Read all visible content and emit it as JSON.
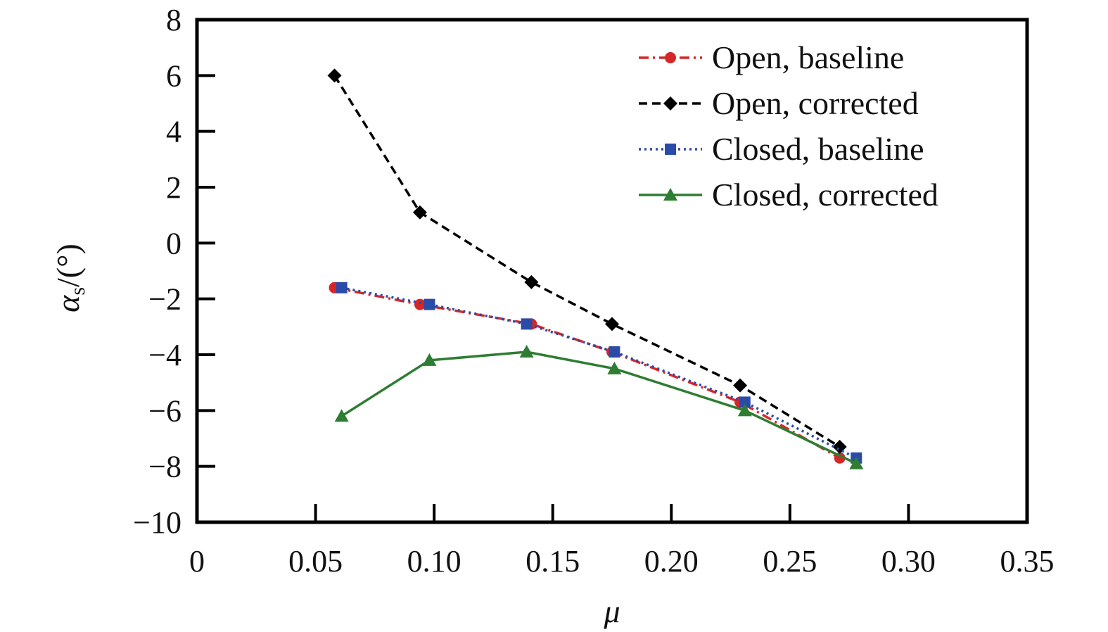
{
  "chart_data": {
    "type": "line",
    "xlabel": "μ",
    "ylabel_main": "α",
    "ylabel_sub": "s",
    "ylabel_suffix": "/(°)",
    "xlim": [
      0,
      0.35
    ],
    "ylim": [
      -10,
      8
    ],
    "x_ticks": [
      0,
      0.05,
      0.1,
      0.15,
      0.2,
      0.25,
      0.3,
      0.35
    ],
    "x_tick_labels": [
      "0",
      "0.05",
      "0.10",
      "0.15",
      "0.20",
      "0.25",
      "0.30",
      "0.35"
    ],
    "y_ticks": [
      -10,
      -8,
      -6,
      -4,
      -2,
      0,
      2,
      4,
      6,
      8
    ],
    "y_tick_labels": [
      "−10",
      "−8",
      "−6",
      "−4",
      "−2",
      "0",
      "2",
      "4",
      "6",
      "8"
    ],
    "grid": false,
    "legend_position": "top-right",
    "series": [
      {
        "name": "Open, baseline",
        "color": "#d62728",
        "dash": "dash-dot",
        "marker": "circle",
        "x": [
          0.058,
          0.094,
          0.141,
          0.175,
          0.229,
          0.271
        ],
        "y": [
          -1.6,
          -2.2,
          -2.9,
          -3.9,
          -5.7,
          -7.7
        ]
      },
      {
        "name": "Open, corrected",
        "color": "#000000",
        "dash": "dashed",
        "marker": "diamond",
        "x": [
          0.058,
          0.094,
          0.141,
          0.175,
          0.229,
          0.271
        ],
        "y": [
          6.0,
          1.1,
          -1.4,
          -2.9,
          -5.1,
          -7.3
        ]
      },
      {
        "name": "Closed, baseline",
        "color": "#2b4ba8",
        "dash": "dotted",
        "marker": "square",
        "x": [
          0.061,
          0.098,
          0.139,
          0.176,
          0.231,
          0.278
        ],
        "y": [
          -1.6,
          -2.2,
          -2.9,
          -3.9,
          -5.7,
          -7.7
        ]
      },
      {
        "name": "Closed, corrected",
        "color": "#2e7d32",
        "dash": "solid",
        "marker": "triangle",
        "x": [
          0.061,
          0.098,
          0.139,
          0.176,
          0.231,
          0.278
        ],
        "y": [
          -6.2,
          -4.2,
          -3.9,
          -4.5,
          -6.0,
          -7.9
        ]
      }
    ]
  }
}
